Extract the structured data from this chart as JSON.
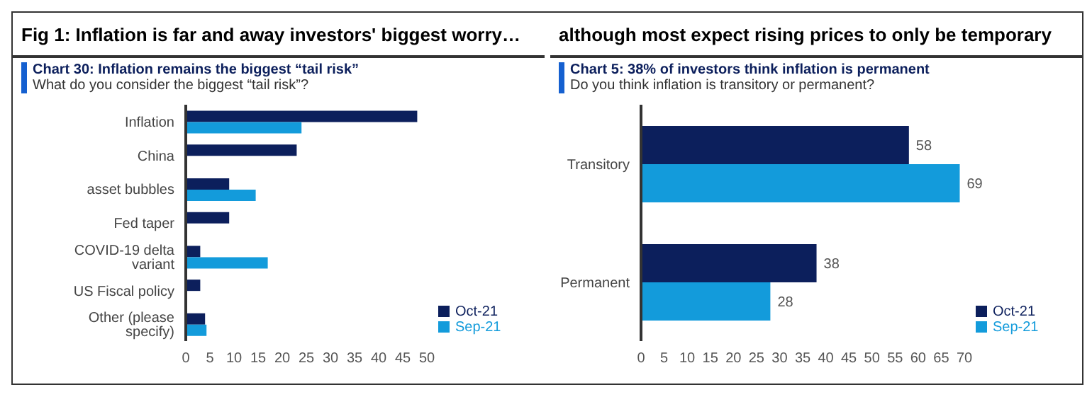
{
  "chart_data": [
    {
      "type": "bar",
      "orientation": "horizontal",
      "annotations": [
        "Fig 1: Inflation is far and away investors' biggest worry…"
      ],
      "title": "Chart 30: Inflation remains the biggest “tail risk”",
      "subtitle": "What do you consider the biggest “tail risk”?",
      "categories": [
        "Inflation",
        "China",
        "asset bubbles",
        "Fed taper",
        "COVID-19 delta variant",
        "US Fiscal policy",
        "Other (please specify)"
      ],
      "series": [
        {
          "name": "Oct-21",
          "color": "#0c1f5c",
          "values": [
            48,
            23,
            9,
            9,
            3,
            3,
            4
          ]
        },
        {
          "name": "Sep-21",
          "color": "#139bdb",
          "values": [
            24,
            null,
            14.5,
            null,
            17,
            null,
            4.3
          ]
        }
      ],
      "xlim": [
        0,
        50
      ],
      "xticks": [
        0,
        5,
        10,
        15,
        20,
        25,
        30,
        35,
        40,
        45,
        50
      ],
      "legend": "bottom right"
    },
    {
      "type": "bar",
      "orientation": "horizontal",
      "annotations": [
        "although most expect rising prices to only be temporary"
      ],
      "title": "Chart 5: 38% of investors think inflation is permanent",
      "subtitle": "Do you think inflation is transitory or permanent?",
      "categories": [
        "Transitory",
        "Permanent"
      ],
      "series": [
        {
          "name": "Oct-21",
          "color": "#0c1f5c",
          "values": [
            58,
            38
          ]
        },
        {
          "name": "Sep-21",
          "color": "#139bdb",
          "values": [
            69,
            28
          ]
        }
      ],
      "xlim": [
        0,
        70
      ],
      "xticks": [
        0,
        5,
        10,
        15,
        20,
        25,
        30,
        35,
        40,
        45,
        50,
        55,
        60,
        65,
        70
      ],
      "data_labels": true,
      "legend": "bottom right"
    }
  ]
}
